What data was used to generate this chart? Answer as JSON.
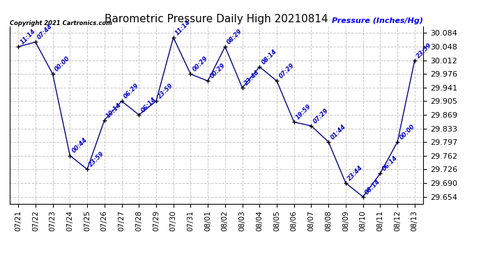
{
  "title": "Barometric Pressure Daily High 20210814",
  "ylabel": "Pressure (Inches/Hg)",
  "copyright": "Copyright 2021 Cartronics.com",
  "background_color": "#ffffff",
  "line_color": "#00008B",
  "point_color": "#000080",
  "label_color": "#0000CC",
  "ylim": [
    29.636,
    30.102
  ],
  "yticks": [
    29.654,
    29.69,
    29.726,
    29.762,
    29.797,
    29.833,
    29.869,
    29.905,
    29.941,
    29.976,
    30.012,
    30.048,
    30.084
  ],
  "dates": [
    "07/21",
    "07/22",
    "07/23",
    "07/24",
    "07/25",
    "07/26",
    "07/27",
    "07/28",
    "07/29",
    "07/30",
    "07/31",
    "08/01",
    "08/02",
    "08/03",
    "08/04",
    "08/05",
    "08/06",
    "08/07",
    "08/08",
    "08/09",
    "08/10",
    "08/11",
    "08/12",
    "08/13"
  ],
  "values": [
    30.048,
    30.06,
    29.976,
    29.762,
    29.726,
    29.855,
    29.905,
    29.869,
    29.905,
    30.072,
    29.976,
    29.958,
    30.048,
    29.94,
    29.995,
    29.958,
    29.85,
    29.84,
    29.798,
    29.69,
    29.654,
    29.715,
    29.798,
    30.012
  ],
  "time_labels": [
    "11:14",
    "07:44",
    "00:00",
    "00:44",
    "23:59",
    "10:14",
    "06:29",
    "06:14",
    "23:59",
    "11:14",
    "00:29",
    "00:29",
    "08:29",
    "23:44",
    "08:14",
    "07:29",
    "19:59",
    "07:29",
    "01:44",
    "23:44",
    "08:14",
    "06:14",
    "00:00",
    "23:59"
  ],
  "grid_color": "#c8c8c8",
  "grid_style": "--",
  "figsize": [
    6.9,
    3.75
  ],
  "dpi": 100
}
